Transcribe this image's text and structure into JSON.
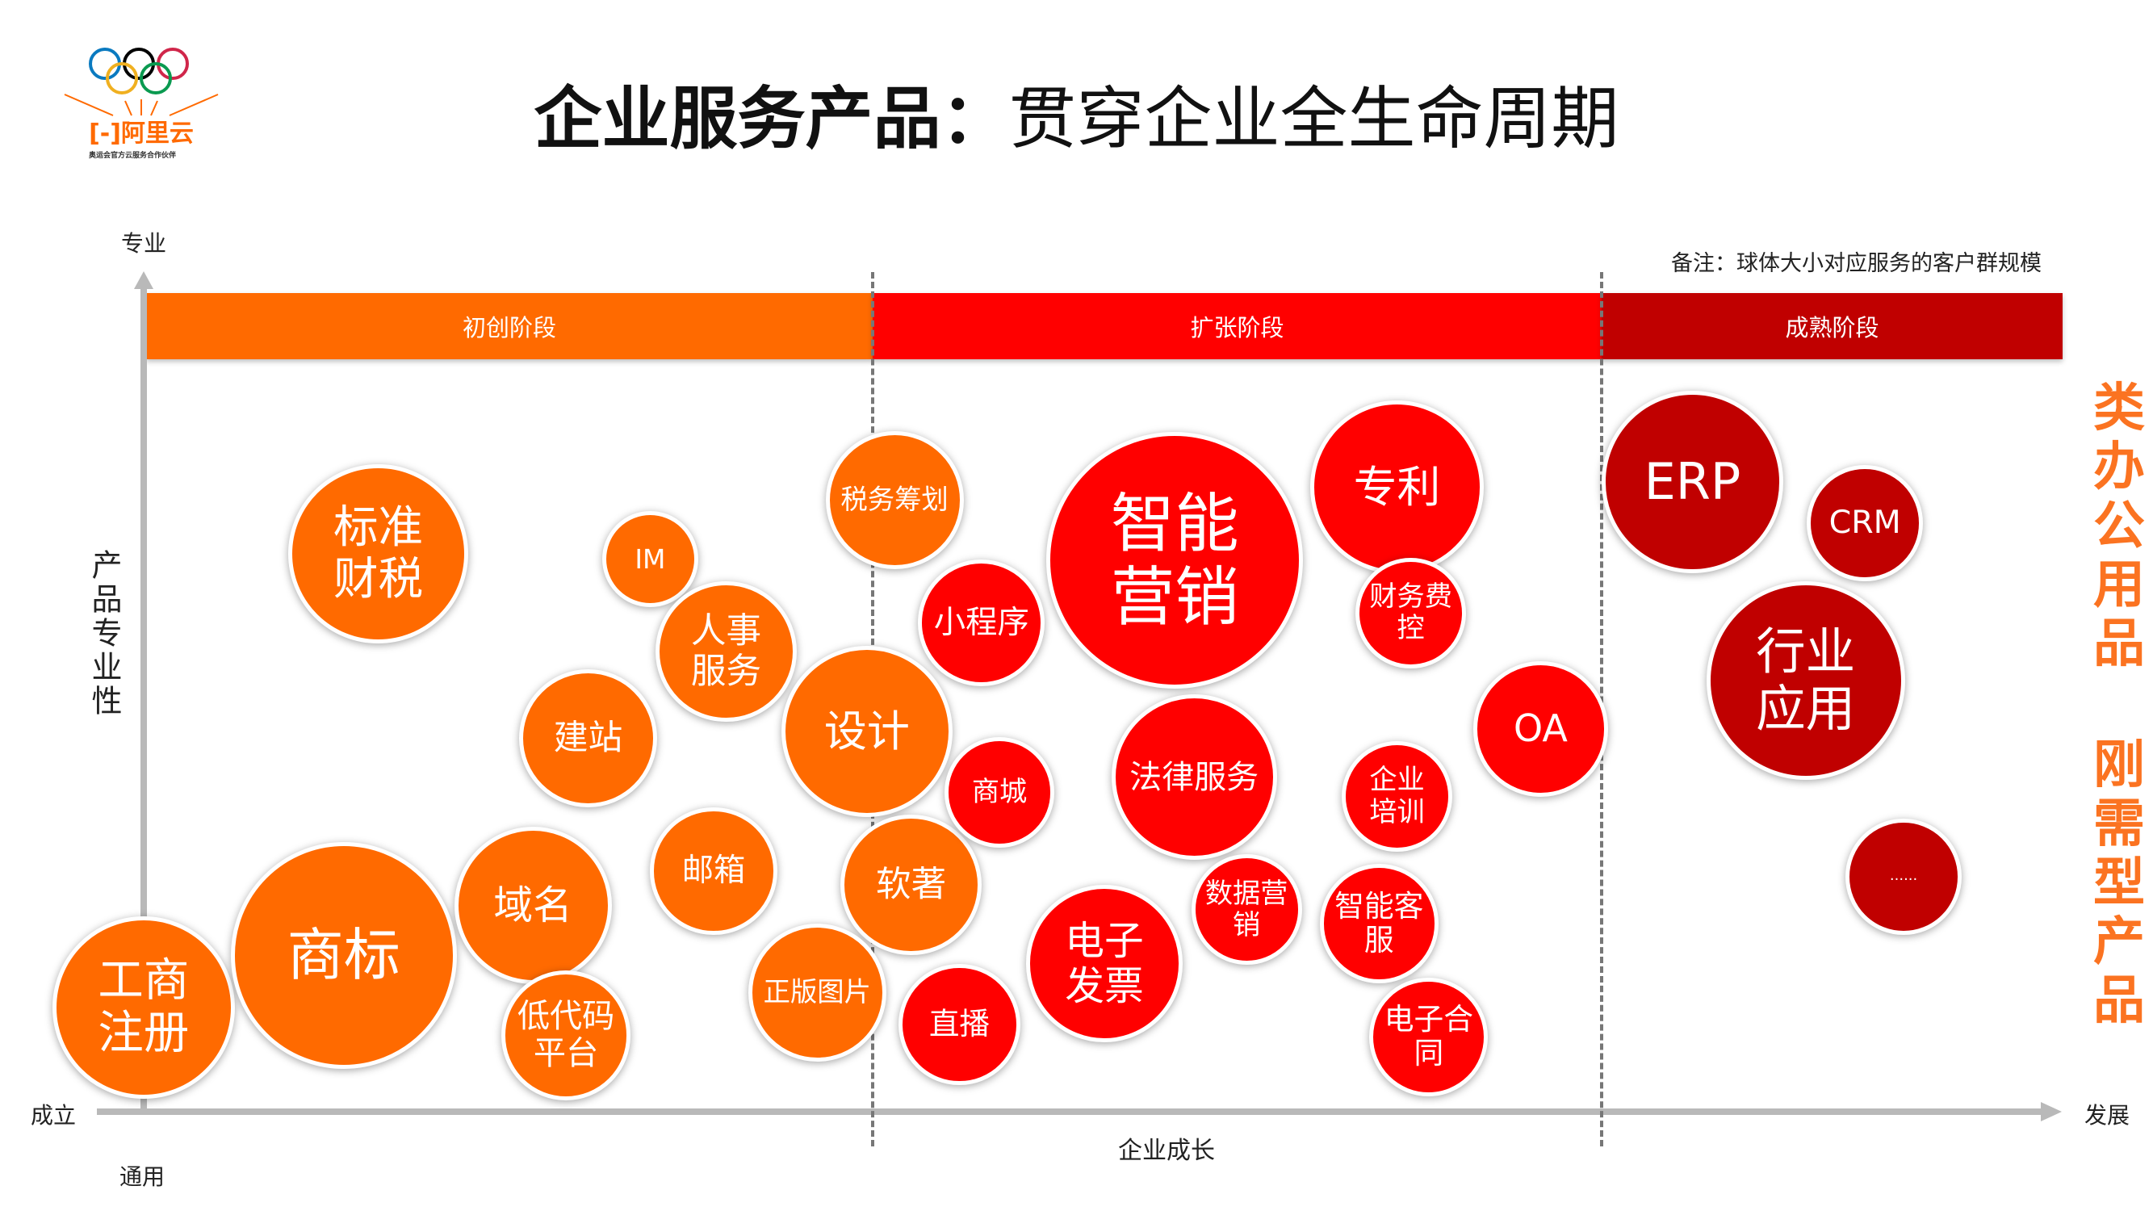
{
  "title": {
    "bold": "企业服务产品：",
    "normal": "贯穿企业全生命周期"
  },
  "logo": {
    "brand": "阿里云",
    "tagline": "奥运会官方云服务合作伙伴"
  },
  "note": "备注：球体大小对应服务的客户群规模",
  "axes": {
    "y_top": "专业",
    "y_label": "产品专业性",
    "y_bottom": "通用",
    "x_left": "成立",
    "x_label": "企业成长",
    "x_right": "发展"
  },
  "stages": [
    {
      "label": "初创阶段",
      "color": "#ff6a00"
    },
    {
      "label": "扩张阶段",
      "color": "#ff0000"
    },
    {
      "label": "成熟阶段",
      "color": "#c00000"
    }
  ],
  "side_labels": [
    "类办公用品",
    "刚需型产品"
  ],
  "side_color": "#fb7321",
  "bubbles": [
    {
      "label": "工商\n注册",
      "stage": 0
    },
    {
      "label": "商标",
      "stage": 0
    },
    {
      "label": "域名",
      "stage": 0
    },
    {
      "label": "低代码\n平台",
      "stage": 0
    },
    {
      "label": "邮箱",
      "stage": 0
    },
    {
      "label": "建站",
      "stage": 0
    },
    {
      "label": "标准\n财税",
      "stage": 0
    },
    {
      "label": "IM",
      "stage": 0
    },
    {
      "label": "人事\n服务",
      "stage": 0
    },
    {
      "label": "设计",
      "stage": 0
    },
    {
      "label": "税务筹划",
      "stage": 0
    },
    {
      "label": "软著",
      "stage": 0
    },
    {
      "label": "正版图片",
      "stage": 0
    },
    {
      "label": "小程序",
      "stage": 1
    },
    {
      "label": "智能\n营销",
      "stage": 1
    },
    {
      "label": "专利",
      "stage": 1
    },
    {
      "label": "财务费\n控",
      "stage": 1
    },
    {
      "label": "商城",
      "stage": 1
    },
    {
      "label": "法律服务",
      "stage": 1
    },
    {
      "label": "企业\n培训",
      "stage": 1
    },
    {
      "label": "OA",
      "stage": 1
    },
    {
      "label": "数据营\n销",
      "stage": 1
    },
    {
      "label": "智能客\n服",
      "stage": 1
    },
    {
      "label": "电子\n发票",
      "stage": 1
    },
    {
      "label": "直播",
      "stage": 1
    },
    {
      "label": "电子合\n同",
      "stage": 1
    },
    {
      "label": "ERP",
      "stage": 2
    },
    {
      "label": "CRM",
      "stage": 2
    },
    {
      "label": "行业\n应用",
      "stage": 2
    },
    {
      "label": "......",
      "stage": 2
    }
  ]
}
